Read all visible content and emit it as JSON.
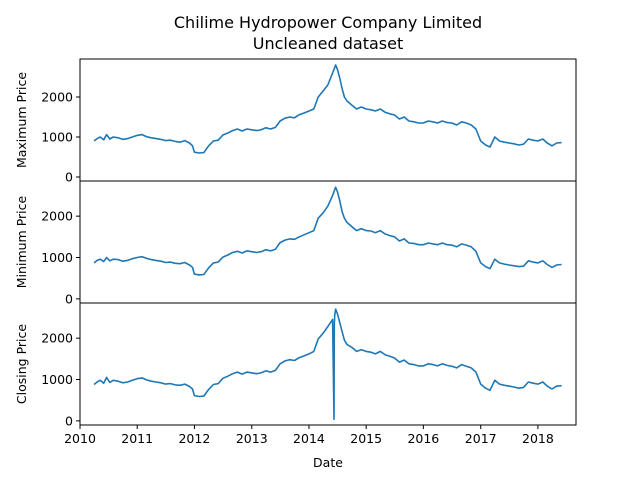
{
  "chart_data": {
    "type": "line",
    "title": "Chilime Hydropower Company Limited",
    "subtitle": "Uncleaned dataset",
    "xlabel": "Date",
    "xlim": [
      "2010-01-01",
      "2018-09-01"
    ],
    "xticks": [
      "2010",
      "2011",
      "2012",
      "2013",
      "2014",
      "2015",
      "2016",
      "2017",
      "2018"
    ],
    "grid": false,
    "color": "#1f77b4",
    "subplots": [
      {
        "ylabel": "Maximum Price",
        "ylim": [
          -100,
          2950
        ],
        "yticks": [
          0,
          1000,
          2000
        ],
        "x": [
          "2010-04-01",
          "2010-04-20",
          "2010-05-10",
          "2010-06-01",
          "2010-06-20",
          "2010-07-10",
          "2010-08-01",
          "2010-09-01",
          "2010-10-01",
          "2010-11-01",
          "2010-12-01",
          "2011-01-01",
          "2011-02-01",
          "2011-03-01",
          "2011-04-01",
          "2011-05-01",
          "2011-06-01",
          "2011-07-01",
          "2011-08-01",
          "2011-09-01",
          "2011-10-01",
          "2011-11-01",
          "2011-12-01",
          "2011-12-20",
          "2012-01-01",
          "2012-02-01",
          "2012-03-01",
          "2012-04-01",
          "2012-05-01",
          "2012-06-01",
          "2012-07-01",
          "2012-08-01",
          "2012-09-01",
          "2012-10-01",
          "2012-11-01",
          "2012-12-01",
          "2013-01-01",
          "2013-02-01",
          "2013-03-01",
          "2013-04-01",
          "2013-05-01",
          "2013-06-01",
          "2013-07-01",
          "2013-08-01",
          "2013-09-01",
          "2013-10-01",
          "2013-11-01",
          "2013-12-01",
          "2014-01-01",
          "2014-02-01",
          "2014-03-01",
          "2014-04-01",
          "2014-05-01",
          "2014-06-01",
          "2014-06-20",
          "2014-07-01",
          "2014-07-15",
          "2014-08-01",
          "2014-08-15",
          "2014-09-01",
          "2014-10-01",
          "2014-11-01",
          "2014-12-01",
          "2015-01-01",
          "2015-02-01",
          "2015-03-01",
          "2015-04-01",
          "2015-05-01",
          "2015-06-01",
          "2015-07-01",
          "2015-08-01",
          "2015-09-01",
          "2015-10-01",
          "2015-11-01",
          "2015-12-01",
          "2016-01-01",
          "2016-02-01",
          "2016-03-01",
          "2016-04-01",
          "2016-05-01",
          "2016-06-01",
          "2016-07-01",
          "2016-08-01",
          "2016-09-01",
          "2016-10-01",
          "2016-11-01",
          "2016-12-01",
          "2017-01-01",
          "2017-02-01",
          "2017-03-01",
          "2017-04-01",
          "2017-05-01",
          "2017-06-01",
          "2017-07-01",
          "2017-08-01",
          "2017-09-01",
          "2017-10-01",
          "2017-11-01",
          "2017-12-01",
          "2018-01-01",
          "2018-02-01",
          "2018-03-01",
          "2018-04-01",
          "2018-05-01",
          "2018-06-01"
        ],
        "values": [
          900,
          960,
          1000,
          930,
          1060,
          950,
          1000,
          980,
          940,
          960,
          1000,
          1040,
          1060,
          1010,
          980,
          960,
          940,
          910,
          920,
          890,
          870,
          910,
          850,
          780,
          620,
          600,
          610,
          780,
          900,
          920,
          1050,
          1100,
          1160,
          1200,
          1150,
          1200,
          1180,
          1160,
          1180,
          1230,
          1200,
          1240,
          1400,
          1470,
          1500,
          1480,
          1560,
          1600,
          1650,
          1700,
          2000,
          2150,
          2300,
          2600,
          2800,
          2700,
          2500,
          2200,
          2000,
          1900,
          1800,
          1700,
          1750,
          1700,
          1680,
          1650,
          1700,
          1620,
          1580,
          1550,
          1450,
          1500,
          1400,
          1380,
          1350,
          1350,
          1400,
          1380,
          1350,
          1400,
          1360,
          1350,
          1300,
          1380,
          1350,
          1300,
          1200,
          900,
          800,
          750,
          1000,
          900,
          870,
          850,
          830,
          800,
          820,
          950,
          920,
          900,
          950,
          850,
          780,
          850,
          860
        ]
      },
      {
        "ylabel": "Minimum Price",
        "ylim": [
          -100,
          2850
        ],
        "yticks": [
          0,
          1000,
          2000
        ],
        "x": [
          "2010-04-01",
          "2010-04-20",
          "2010-05-10",
          "2010-06-01",
          "2010-06-20",
          "2010-07-10",
          "2010-08-01",
          "2010-09-01",
          "2010-10-01",
          "2010-11-01",
          "2010-12-01",
          "2011-01-01",
          "2011-02-01",
          "2011-03-01",
          "2011-04-01",
          "2011-05-01",
          "2011-06-01",
          "2011-07-01",
          "2011-08-01",
          "2011-09-01",
          "2011-10-01",
          "2011-11-01",
          "2011-12-01",
          "2011-12-20",
          "2012-01-01",
          "2012-02-01",
          "2012-03-01",
          "2012-04-01",
          "2012-05-01",
          "2012-06-01",
          "2012-07-01",
          "2012-08-01",
          "2012-09-01",
          "2012-10-01",
          "2012-11-01",
          "2012-12-01",
          "2013-01-01",
          "2013-02-01",
          "2013-03-01",
          "2013-04-01",
          "2013-05-01",
          "2013-06-01",
          "2013-07-01",
          "2013-08-01",
          "2013-09-01",
          "2013-10-01",
          "2013-11-01",
          "2013-12-01",
          "2014-01-01",
          "2014-02-01",
          "2014-03-01",
          "2014-04-01",
          "2014-05-01",
          "2014-06-01",
          "2014-06-20",
          "2014-07-01",
          "2014-07-15",
          "2014-08-01",
          "2014-08-15",
          "2014-09-01",
          "2014-10-01",
          "2014-11-01",
          "2014-12-01",
          "2015-01-01",
          "2015-02-01",
          "2015-03-01",
          "2015-04-01",
          "2015-05-01",
          "2015-06-01",
          "2015-07-01",
          "2015-08-01",
          "2015-09-01",
          "2015-10-01",
          "2015-11-01",
          "2015-12-01",
          "2016-01-01",
          "2016-02-01",
          "2016-03-01",
          "2016-04-01",
          "2016-05-01",
          "2016-06-01",
          "2016-07-01",
          "2016-08-01",
          "2016-09-01",
          "2016-10-01",
          "2016-11-01",
          "2016-12-01",
          "2017-01-01",
          "2017-02-01",
          "2017-03-01",
          "2017-04-01",
          "2017-05-01",
          "2017-06-01",
          "2017-07-01",
          "2017-08-01",
          "2017-09-01",
          "2017-10-01",
          "2017-11-01",
          "2017-12-01",
          "2018-01-01",
          "2018-02-01",
          "2018-03-01",
          "2018-04-01",
          "2018-05-01",
          "2018-06-01"
        ],
        "values": [
          870,
          930,
          960,
          900,
          1000,
          920,
          960,
          950,
          910,
          930,
          970,
          1000,
          1020,
          980,
          950,
          930,
          910,
          880,
          890,
          860,
          850,
          880,
          820,
          760,
          600,
          580,
          590,
          750,
          870,
          890,
          1010,
          1060,
          1120,
          1150,
          1110,
          1160,
          1140,
          1120,
          1140,
          1190,
          1160,
          1200,
          1360,
          1420,
          1450,
          1440,
          1500,
          1550,
          1600,
          1650,
          1950,
          2080,
          2240,
          2500,
          2700,
          2600,
          2400,
          2100,
          1950,
          1850,
          1750,
          1650,
          1700,
          1650,
          1640,
          1600,
          1650,
          1570,
          1530,
          1500,
          1400,
          1450,
          1350,
          1340,
          1310,
          1310,
          1350,
          1330,
          1310,
          1350,
          1310,
          1300,
          1260,
          1330,
          1300,
          1260,
          1150,
          870,
          780,
          730,
          960,
          870,
          840,
          820,
          800,
          780,
          790,
          920,
          890,
          870,
          920,
          830,
          760,
          820,
          830
        ]
      },
      {
        "ylabel": "Closing Price",
        "ylim": [
          -100,
          2850
        ],
        "yticks": [
          0,
          1000,
          2000
        ],
        "x": [
          "2010-04-01",
          "2010-04-20",
          "2010-05-10",
          "2010-06-01",
          "2010-06-20",
          "2010-07-10",
          "2010-08-01",
          "2010-09-01",
          "2010-10-01",
          "2010-11-01",
          "2010-12-01",
          "2011-01-01",
          "2011-02-01",
          "2011-03-01",
          "2011-04-01",
          "2011-05-01",
          "2011-06-01",
          "2011-07-01",
          "2011-08-01",
          "2011-09-01",
          "2011-10-01",
          "2011-11-01",
          "2011-12-01",
          "2011-12-20",
          "2012-01-01",
          "2012-02-01",
          "2012-03-01",
          "2012-04-01",
          "2012-05-01",
          "2012-06-01",
          "2012-07-01",
          "2012-08-01",
          "2012-09-01",
          "2012-10-01",
          "2012-11-01",
          "2012-12-01",
          "2013-01-01",
          "2013-02-01",
          "2013-03-01",
          "2013-04-01",
          "2013-05-01",
          "2013-06-01",
          "2013-07-01",
          "2013-08-01",
          "2013-09-01",
          "2013-10-01",
          "2013-11-01",
          "2013-12-01",
          "2014-01-01",
          "2014-02-01",
          "2014-03-01",
          "2014-04-01",
          "2014-05-01",
          "2014-06-01",
          "2014-06-10",
          "2014-06-12",
          "2014-06-14",
          "2014-06-20",
          "2014-07-01",
          "2014-07-15",
          "2014-08-01",
          "2014-08-15",
          "2014-09-01",
          "2014-10-01",
          "2014-11-01",
          "2014-12-01",
          "2015-01-01",
          "2015-02-01",
          "2015-03-01",
          "2015-04-01",
          "2015-05-01",
          "2015-06-01",
          "2015-07-01",
          "2015-08-01",
          "2015-09-01",
          "2015-10-01",
          "2015-11-01",
          "2015-12-01",
          "2016-01-01",
          "2016-02-01",
          "2016-03-01",
          "2016-04-01",
          "2016-05-01",
          "2016-06-01",
          "2016-07-01",
          "2016-08-01",
          "2016-09-01",
          "2016-10-01",
          "2016-11-01",
          "2016-12-01",
          "2017-01-01",
          "2017-02-01",
          "2017-03-01",
          "2017-04-01",
          "2017-05-01",
          "2017-06-01",
          "2017-07-01",
          "2017-08-01",
          "2017-09-01",
          "2017-10-01",
          "2017-11-01",
          "2017-12-01",
          "2018-01-01",
          "2018-02-01",
          "2018-03-01",
          "2018-04-01",
          "2018-05-01",
          "2018-06-01"
        ],
        "values": [
          880,
          940,
          980,
          910,
          1050,
          930,
          980,
          960,
          920,
          940,
          980,
          1020,
          1040,
          990,
          960,
          940,
          920,
          890,
          900,
          870,
          860,
          890,
          830,
          770,
          610,
          590,
          600,
          760,
          880,
          900,
          1030,
          1080,
          1140,
          1180,
          1130,
          1180,
          1160,
          1140,
          1160,
          1210,
          1180,
          1220,
          1380,
          1450,
          1480,
          1460,
          1530,
          1570,
          1620,
          1680,
          1980,
          2120,
          2280,
          2450,
          40,
          2300,
          2550,
          2700,
          2600,
          2400,
          2150,
          1950,
          1850,
          1780,
          1680,
          1720,
          1680,
          1660,
          1620,
          1680,
          1600,
          1560,
          1520,
          1420,
          1470,
          1380,
          1360,
          1330,
          1330,
          1380,
          1360,
          1330,
          1380,
          1340,
          1320,
          1280,
          1360,
          1320,
          1280,
          1180,
          890,
          790,
          740,
          980,
          890,
          860,
          840,
          820,
          790,
          810,
          940,
          910,
          890,
          940,
          840,
          770,
          840,
          850
        ]
      }
    ]
  }
}
